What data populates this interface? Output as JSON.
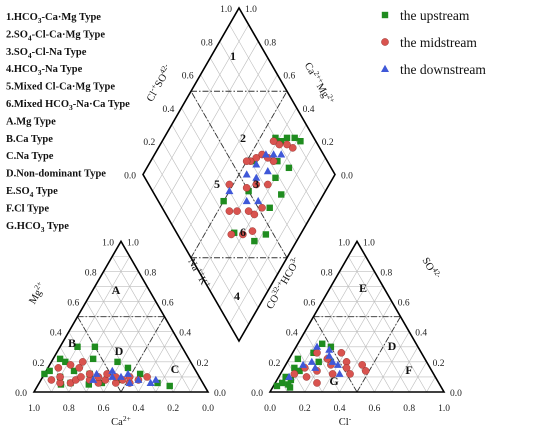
{
  "legend": [
    {
      "name": "the upstream",
      "marker": "square",
      "color": "#1f8c1f"
    },
    {
      "name": "the midstream",
      "marker": "circle",
      "color": "#d9534f"
    },
    {
      "name": "the downstream",
      "marker": "triangle",
      "color": "#3f58d8"
    }
  ],
  "type_list": [
    {
      "pre": "1.HCO",
      "sub": "3",
      "post": "-Ca·Mg Type"
    },
    {
      "pre": "2.SO",
      "sub": "4",
      "post": "-Cl-Ca·Mg Type"
    },
    {
      "pre": "3.SO",
      "sub": "4",
      "post": "-Cl-Na Type"
    },
    {
      "pre": "4.HCO",
      "sub": "3",
      "post": "-Na Type"
    },
    {
      "pre": "5.Mixed Cl-Ca·Mg Type",
      "sub": "",
      "post": ""
    },
    {
      "pre": "6.Mixed HCO",
      "sub": "3",
      "post": "-Na·Ca Type"
    },
    {
      "pre": "A.Mg Type",
      "sub": "",
      "post": ""
    },
    {
      "pre": "B.Ca Type",
      "sub": "",
      "post": ""
    },
    {
      "pre": "C.Na Type",
      "sub": "",
      "post": ""
    },
    {
      "pre": "D.Non-dominant Type",
      "sub": "",
      "post": ""
    },
    {
      "pre": "E.SO",
      "sub": "4",
      "post": " Type"
    },
    {
      "pre": "F.Cl Type",
      "sub": "",
      "post": ""
    },
    {
      "pre": "G.HCO",
      "sub": "3",
      "post": " Type"
    }
  ],
  "axis_titles": {
    "cation_bottom": "Ca2+",
    "cation_left": "Mg2+",
    "cation_right": "Na++K+",
    "anion_bottom": "Cl-",
    "anion_left": "CO32-+HCO3-",
    "anion_right": "SO42-",
    "diamond_left": "Cl-+SO42-",
    "diamond_right": "Ca2++Mg2+"
  },
  "tick_labels": [
    "0.0",
    "0.2",
    "0.4",
    "0.6",
    "0.8",
    "1.0"
  ],
  "region_labels": {
    "cation": [
      "A",
      "B",
      "C",
      "D"
    ],
    "anion": [
      "E",
      "F",
      "G",
      "D"
    ],
    "diamond": [
      "1",
      "2",
      "3",
      "4",
      "5",
      "6"
    ]
  },
  "chart_data": {
    "type": "scatter",
    "chart_kind": "piper_trilinear",
    "grid": true,
    "legend_position": "top-right",
    "axis_range": [
      0,
      1
    ],
    "series": [
      {
        "name": "the upstream",
        "marker": "square",
        "cation": {
          "ca": [
            0.88,
            0.84,
            0.8,
            0.74,
            0.72,
            0.7,
            0.62,
            0.6,
            0.55,
            0.5,
            0.42,
            0.38,
            0.33,
            0.82,
            0.76,
            0.66,
            0.58,
            0.46,
            0.26,
            0.2
          ],
          "mg": [
            0.12,
            0.14,
            0.1,
            0.22,
            0.2,
            0.14,
            0.12,
            0.3,
            0.22,
            0.3,
            0.2,
            0.16,
            0.12,
            0.05,
            0.06,
            0.05,
            0.06,
            0.08,
            0.06,
            0.04
          ]
        },
        "anion": {
          "cl": [
            0.02,
            0.04,
            0.06,
            0.08,
            0.1,
            0.05,
            0.12,
            0.18,
            0.14,
            0.2,
            0.25,
            0.04,
            0.08,
            0.1
          ],
          "so4": [
            0.04,
            0.1,
            0.16,
            0.08,
            0.14,
            0.22,
            0.26,
            0.2,
            0.32,
            0.3,
            0.2,
            0.06,
            0.05,
            0.03
          ]
        },
        "diamond": {
          "clso4": [
            0.28,
            0.32,
            0.36,
            0.38,
            0.42,
            0.26,
            0.34,
            0.3,
            0.22,
            0.46,
            0.24,
            0.4,
            0.18,
            0.22,
            0.5,
            0.35
          ],
          "camg": [
            0.92,
            0.9,
            0.86,
            0.82,
            0.8,
            0.78,
            0.74,
            0.68,
            0.66,
            0.62,
            0.56,
            0.5,
            0.46,
            0.38,
            0.34,
            0.3
          ]
        }
      },
      {
        "name": "the midstream",
        "marker": "circle",
        "cation": {
          "ca": [
            0.86,
            0.82,
            0.8,
            0.76,
            0.72,
            0.68,
            0.64,
            0.62,
            0.6,
            0.58,
            0.55,
            0.52,
            0.5,
            0.48,
            0.45,
            0.42,
            0.4,
            0.36,
            0.3,
            0.78,
            0.7,
            0.66,
            0.62
          ],
          "mg": [
            0.08,
            0.06,
            0.1,
            0.06,
            0.08,
            0.1,
            0.08,
            0.12,
            0.06,
            0.1,
            0.08,
            0.12,
            0.06,
            0.1,
            0.08,
            0.06,
            0.1,
            0.08,
            0.1,
            0.16,
            0.18,
            0.16,
            0.2
          ]
        },
        "anion": {
          "cl": [
            0.08,
            0.12,
            0.16,
            0.2,
            0.22,
            0.26,
            0.3,
            0.34,
            0.28,
            0.36,
            0.14,
            0.4,
            0.44,
            0.48,
            0.24
          ],
          "so4": [
            0.12,
            0.16,
            0.1,
            0.14,
            0.22,
            0.18,
            0.12,
            0.2,
            0.26,
            0.16,
            0.26,
            0.12,
            0.18,
            0.14,
            0.06
          ]
        },
        "diamond": {
          "clso4": [
            0.3,
            0.34,
            0.38,
            0.42,
            0.36,
            0.4,
            0.44,
            0.46,
            0.32,
            0.48,
            0.5,
            0.38,
            0.42,
            0.28,
            0.3,
            0.34,
            0.26,
            0.4,
            0.52,
            0.44,
            0.36,
            0.3
          ],
          "camg": [
            0.86,
            0.84,
            0.8,
            0.78,
            0.72,
            0.7,
            0.68,
            0.64,
            0.62,
            0.6,
            0.58,
            0.56,
            0.5,
            0.52,
            0.46,
            0.44,
            0.4,
            0.38,
            0.42,
            0.34,
            0.28,
            0.34
          ]
        }
      },
      {
        "name": "the downstream",
        "marker": "triangle",
        "cation": {
          "ca": [
            0.62,
            0.58,
            0.5,
            0.48,
            0.45,
            0.42,
            0.4,
            0.36,
            0.3,
            0.26
          ],
          "mg": [
            0.08,
            0.12,
            0.1,
            0.14,
            0.1,
            0.06,
            0.12,
            0.08,
            0.06,
            0.08
          ]
        },
        "anion": {
          "cl": [
            0.06,
            0.1,
            0.14,
            0.18,
            0.22,
            0.26,
            0.3,
            0.12,
            0.2,
            0.34
          ],
          "so4": [
            0.1,
            0.18,
            0.2,
            0.16,
            0.24,
            0.2,
            0.18,
            0.3,
            0.28,
            0.12
          ]
        },
        "diamond": {
          "clso4": [
            0.34,
            0.38,
            0.42,
            0.36,
            0.44,
            0.4,
            0.46,
            0.32,
            0.38,
            0.5
          ],
          "camg": [
            0.78,
            0.74,
            0.7,
            0.66,
            0.62,
            0.58,
            0.54,
            0.52,
            0.46,
            0.4
          ]
        }
      }
    ]
  }
}
